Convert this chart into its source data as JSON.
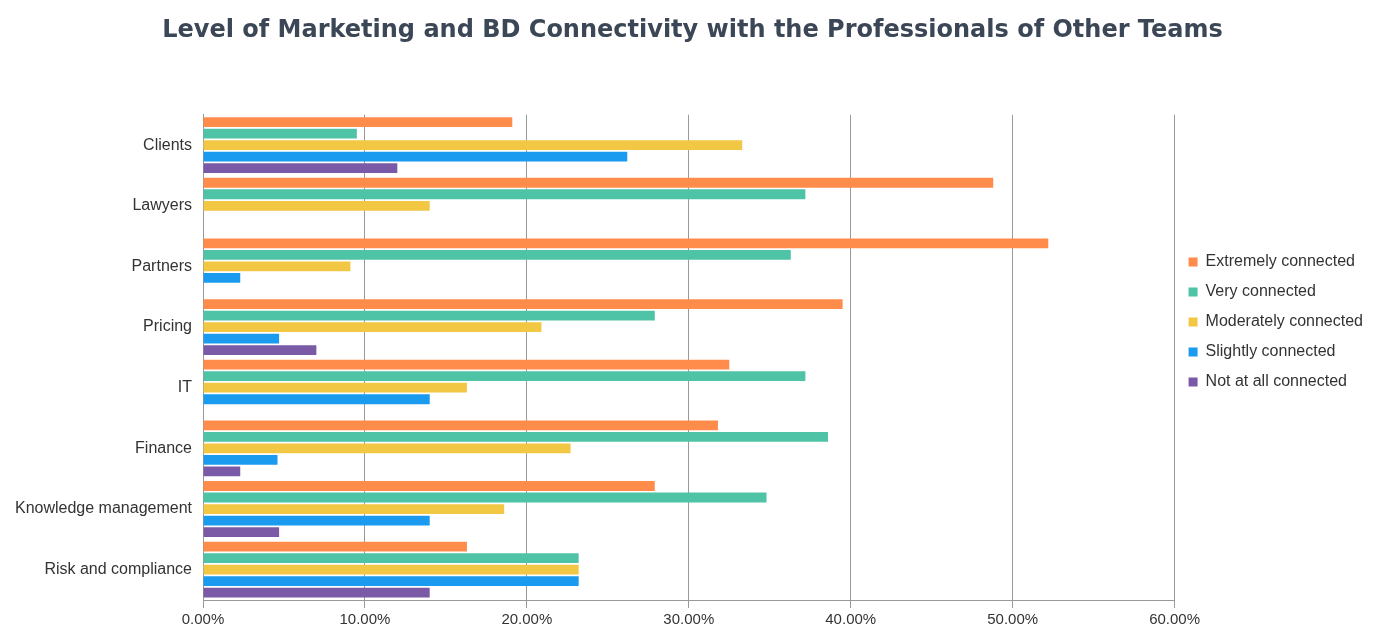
{
  "chart_data": {
    "type": "bar",
    "orientation": "horizontal",
    "title": "Level of Marketing and BD Connectivity with the Professionals of Other Teams",
    "categories": [
      "Clients",
      "Lawyers",
      "Partners",
      "Pricing",
      "IT",
      "Finance",
      "Knowledge management",
      "Risk and compliance"
    ],
    "series": [
      {
        "name": "Extremely connected",
        "color": "#ff8c4b",
        "values": [
          19.1,
          48.8,
          52.2,
          39.5,
          32.5,
          31.8,
          27.9,
          16.3
        ]
      },
      {
        "name": "Very connected",
        "color": "#4fc3a6",
        "values": [
          9.5,
          37.2,
          36.3,
          27.9,
          37.2,
          38.6,
          34.8,
          23.2
        ]
      },
      {
        "name": "Moderately connected",
        "color": "#f2c744",
        "values": [
          33.3,
          14.0,
          9.1,
          20.9,
          16.3,
          22.7,
          18.6,
          23.2
        ]
      },
      {
        "name": "Slightly connected",
        "color": "#1a9bf0",
        "values": [
          26.2,
          0,
          2.3,
          4.7,
          14.0,
          4.6,
          14.0,
          23.2
        ]
      },
      {
        "name": "Not at all connected",
        "color": "#7a5aa6",
        "values": [
          12.0,
          0,
          0,
          7.0,
          0,
          2.3,
          4.7,
          14.0
        ]
      }
    ],
    "xlim": [
      0,
      60
    ],
    "xticks": [
      {
        "value": 0,
        "label": "0.00%"
      },
      {
        "value": 10,
        "label": "10.00%"
      },
      {
        "value": 20,
        "label": "20.00%"
      },
      {
        "value": 30,
        "label": "30.00%"
      },
      {
        "value": 40,
        "label": "40.00%"
      },
      {
        "value": 50,
        "label": "50.00%"
      },
      {
        "value": 60,
        "label": "60.00%"
      }
    ],
    "grid": "x",
    "legend": "right"
  }
}
